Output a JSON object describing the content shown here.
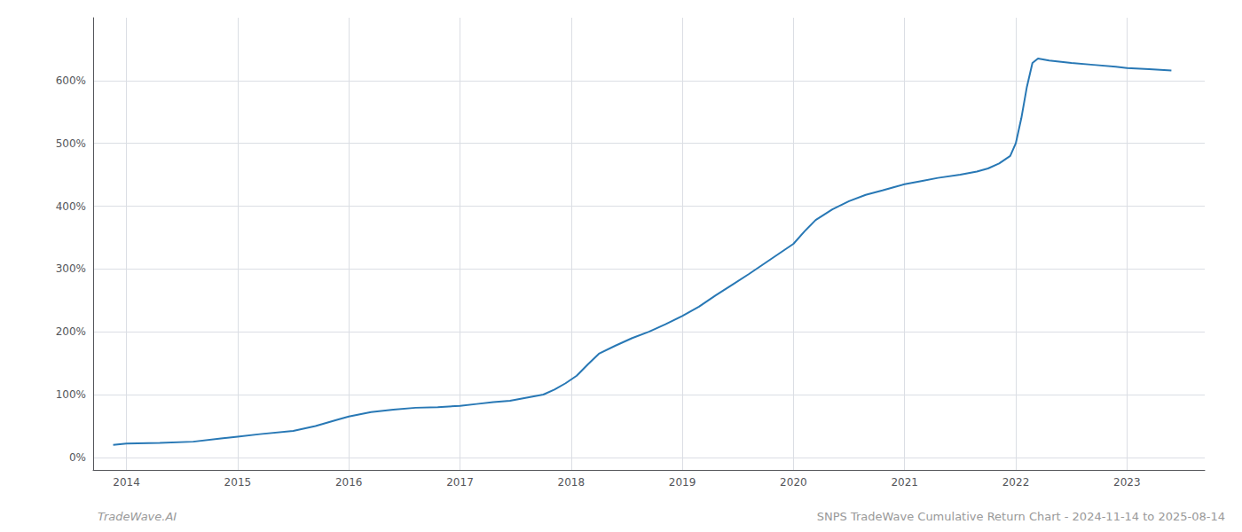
{
  "chart_data": {
    "type": "line",
    "title": "SNPS TradeWave Cumulative Return Chart - 2024-11-14 to 2025-08-14",
    "annotations": [
      "TradeWave.AI"
    ],
    "color": "#2878b5",
    "grid": true,
    "x": [
      2013.88,
      2014.0,
      2014.3,
      2014.6,
      2014.85,
      2015.0,
      2015.2,
      2015.5,
      2015.7,
      2015.9,
      2016.0,
      2016.2,
      2016.4,
      2016.6,
      2016.8,
      2017.0,
      2017.15,
      2017.3,
      2017.45,
      2017.6,
      2017.75,
      2017.85,
      2017.95,
      2018.05,
      2018.15,
      2018.25,
      2018.4,
      2018.55,
      2018.7,
      2018.85,
      2019.0,
      2019.15,
      2019.3,
      2019.45,
      2019.6,
      2019.75,
      2019.9,
      2020.0,
      2020.1,
      2020.2,
      2020.35,
      2020.5,
      2020.65,
      2020.8,
      2020.9,
      2021.0,
      2021.15,
      2021.3,
      2021.5,
      2021.65,
      2021.75,
      2021.85,
      2021.95,
      2022.0,
      2022.05,
      2022.1,
      2022.15,
      2022.2,
      2022.3,
      2022.5,
      2022.7,
      2022.9,
      2023.0,
      2023.2,
      2023.4
    ],
    "values": [
      20,
      22,
      23,
      25,
      30,
      33,
      37,
      42,
      50,
      60,
      65,
      72,
      76,
      79,
      80,
      82,
      85,
      88,
      90,
      95,
      100,
      108,
      118,
      130,
      148,
      165,
      178,
      190,
      200,
      212,
      225,
      240,
      258,
      275,
      292,
      310,
      328,
      340,
      360,
      378,
      395,
      408,
      418,
      425,
      430,
      435,
      440,
      445,
      450,
      455,
      460,
      468,
      480,
      500,
      540,
      590,
      628,
      635,
      632,
      628,
      625,
      622,
      620,
      618,
      616
    ],
    "xlim": [
      2013.7,
      2023.7
    ],
    "xticks": [
      2014,
      2015,
      2016,
      2017,
      2018,
      2019,
      2020,
      2021,
      2022,
      2023
    ],
    "ylim": [
      -20,
      700
    ],
    "yticks": [
      {
        "value": 0,
        "label": "0%"
      },
      {
        "value": 100,
        "label": "100%"
      },
      {
        "value": 200,
        "label": "200%"
      },
      {
        "value": 300,
        "label": "300%"
      },
      {
        "value": 400,
        "label": "400%"
      },
      {
        "value": 500,
        "label": "500%"
      },
      {
        "value": 600,
        "label": "600%"
      }
    ]
  }
}
